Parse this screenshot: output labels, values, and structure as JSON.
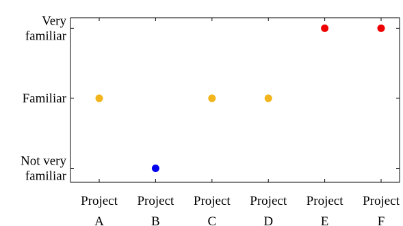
{
  "chart_data": {
    "type": "scatter",
    "title": "",
    "xlabel": "",
    "ylabel": "",
    "categories": [
      "Project A",
      "Project B",
      "Project C",
      "Project D",
      "Project E",
      "Project F"
    ],
    "category_lines": [
      [
        "Project",
        "A"
      ],
      [
        "Project",
        "B"
      ],
      [
        "Project",
        "C"
      ],
      [
        "Project",
        "D"
      ],
      [
        "Project",
        "E"
      ],
      [
        "Project",
        "F"
      ]
    ],
    "y_levels": [
      {
        "value": 1,
        "lines": [
          "Not very",
          "familiar"
        ]
      },
      {
        "value": 2,
        "lines": [
          "Familiar"
        ]
      },
      {
        "value": 3,
        "lines": [
          "Very",
          "familiar"
        ]
      }
    ],
    "ylim": [
      0.8,
      3.15
    ],
    "grid": false,
    "legend": "none",
    "points": [
      {
        "category": "Project A",
        "y": 2,
        "color": "#F2B51C"
      },
      {
        "category": "Project B",
        "y": 1,
        "color": "#0000EE"
      },
      {
        "category": "Project C",
        "y": 2,
        "color": "#F2B51C"
      },
      {
        "category": "Project D",
        "y": 2,
        "color": "#F2B51C"
      },
      {
        "category": "Project E",
        "y": 3,
        "color": "#EE0000"
      },
      {
        "category": "Project F",
        "y": 3,
        "color": "#EE0000"
      }
    ]
  }
}
